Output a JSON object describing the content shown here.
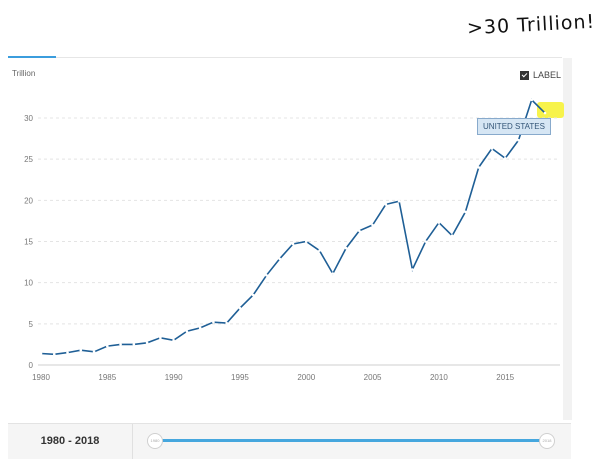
{
  "annotation": {
    "text": ">30 Trillion!"
  },
  "label_toggle": {
    "text": "LABEL",
    "checked": true
  },
  "tooltip": {
    "text": "UNITED STATES"
  },
  "footer": {
    "range_text": "1980 - 2018",
    "start_handle": "1980",
    "end_handle": "2018"
  },
  "colors": {
    "line": "#1f5f96",
    "accent": "#3b9ddd",
    "highlight": "#f7f34b"
  },
  "chart_data": {
    "type": "line",
    "unit_label": "Trillion",
    "xlim": [
      1980,
      2018
    ],
    "ylim": [
      0,
      32
    ],
    "x_ticks": [
      1980,
      1985,
      1990,
      1995,
      2000,
      2005,
      2010,
      2015
    ],
    "y_ticks": [
      0,
      5,
      10,
      15,
      20,
      25,
      30
    ],
    "grid": true,
    "series": [
      {
        "x": [
          1980,
          1981,
          1982,
          1983,
          1984,
          1985,
          1986,
          1987,
          1988,
          1989,
          1990,
          1991,
          1992,
          1993,
          1994,
          1995,
          1996,
          1997,
          1998,
          1999,
          2000,
          2001,
          2002,
          2003,
          2004,
          2005,
          2006,
          2007,
          2008,
          2009,
          2010,
          2011,
          2012,
          2013,
          2014,
          2015,
          2016,
          2017,
          2018
        ],
        "y": [
          1.4,
          1.3,
          1.5,
          1.8,
          1.6,
          2.3,
          2.5,
          2.5,
          2.7,
          3.3,
          3.0,
          4.1,
          4.5,
          5.2,
          5.1,
          6.9,
          8.5,
          10.9,
          12.9,
          14.7,
          15.0,
          13.9,
          11.1,
          14.2,
          16.3,
          17.0,
          19.5,
          19.9,
          11.6,
          15.0,
          17.3,
          15.7,
          18.6,
          24.0,
          26.3,
          25.1,
          27.3,
          32.2,
          30.6
        ]
      }
    ]
  }
}
